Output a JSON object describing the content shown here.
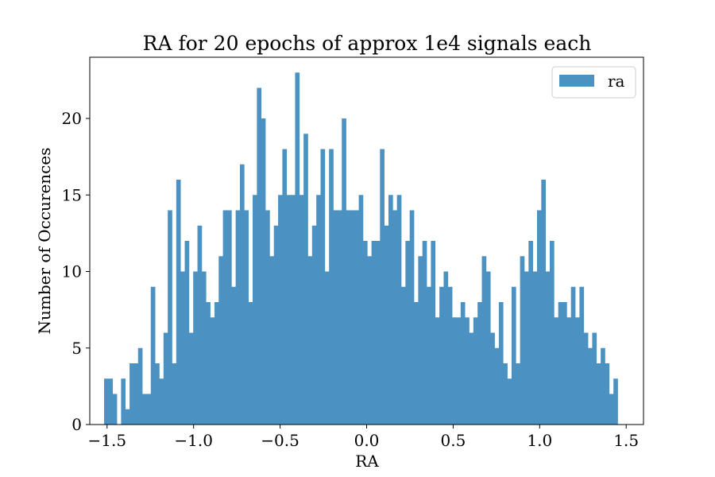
{
  "chart_data": {
    "type": "bar",
    "title": "RA for 20 epochs of approx 1e4 signals each",
    "xlabel": "RA",
    "ylabel": "Number of Occurences",
    "xlim": [
      -1.6,
      1.6
    ],
    "ylim": [
      0,
      24
    ],
    "x_ticks": [
      -1.5,
      -1.0,
      -0.5,
      0.0,
      0.5,
      1.0,
      1.5
    ],
    "x_tick_labels": [
      "−1.5",
      "−1.0",
      "−0.5",
      "0.0",
      "0.5",
      "1.0",
      "1.5"
    ],
    "y_ticks": [
      0,
      5,
      10,
      15,
      20
    ],
    "y_tick_labels": [
      "0",
      "5",
      "10",
      "15",
      "20"
    ],
    "bin_range": [
      -1.5173,
      1.4507
    ],
    "bins": 121,
    "series": [
      {
        "name": "ra",
        "color": "#4b92c3",
        "values": [
          3,
          3,
          2,
          0,
          3,
          1,
          4,
          4,
          5,
          2,
          2,
          9,
          4,
          3,
          6,
          14,
          4,
          16,
          10,
          12,
          6,
          10,
          13,
          10,
          8,
          7,
          8,
          11,
          14,
          14,
          9,
          14,
          17,
          14,
          8,
          15,
          22,
          20,
          14,
          11,
          13,
          15,
          18,
          15,
          15,
          23,
          15,
          19,
          11,
          13,
          15,
          18,
          10,
          18,
          14,
          14,
          20,
          14,
          14,
          14,
          15,
          12,
          11,
          12,
          12,
          18,
          13,
          15,
          14,
          15,
          9,
          12,
          14,
          8,
          11,
          12,
          9,
          12,
          7,
          9,
          10,
          9,
          7,
          7,
          8,
          7,
          6,
          7,
          8,
          11,
          10,
          6,
          5,
          8,
          4,
          3,
          9,
          4,
          11,
          10,
          12,
          10,
          14,
          16,
          10,
          12,
          7,
          8,
          8,
          7,
          9,
          7,
          9,
          6,
          5,
          6,
          4,
          5,
          4,
          2,
          3
        ]
      }
    ],
    "legend": {
      "position": "top-right",
      "entries": [
        "ra"
      ]
    },
    "grid": false
  }
}
